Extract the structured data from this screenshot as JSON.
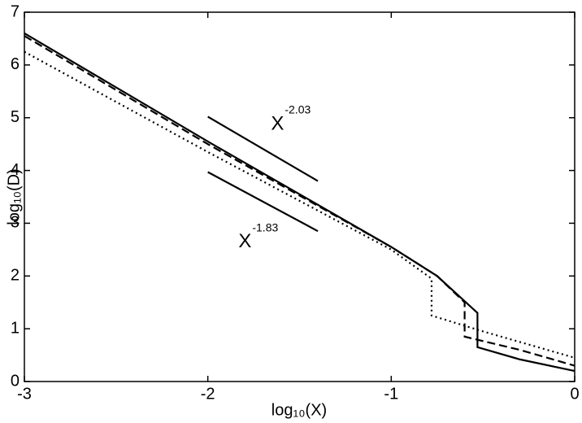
{
  "chart_data": {
    "type": "line",
    "xlabel": "log₁₀(X)",
    "ylabel": "log₁₀(D)",
    "xlim": [
      -3,
      0
    ],
    "ylim": [
      0,
      7
    ],
    "xticks": [
      -3,
      -2,
      -1,
      0
    ],
    "yticks": [
      0,
      1,
      2,
      3,
      4,
      5,
      6,
      7
    ],
    "series": [
      {
        "style": "solid",
        "color": "#000000",
        "x": [
          -3,
          -2,
          -1,
          -0.75,
          -0.53,
          -0.53,
          -0.3,
          0
        ],
        "values": [
          6.6,
          4.55,
          2.55,
          2.0,
          1.3,
          0.65,
          0.42,
          0.2
        ]
      },
      {
        "style": "dashed",
        "color": "#000000",
        "x": [
          -3,
          -2,
          -1,
          -0.75,
          -0.6,
          -0.6,
          -0.3,
          0
        ],
        "values": [
          6.55,
          4.5,
          2.55,
          2.0,
          1.5,
          0.85,
          0.6,
          0.3
        ]
      },
      {
        "style": "dotted",
        "color": "#000000",
        "x": [
          -3,
          -2,
          -1,
          -0.78,
          -0.78,
          -0.5,
          0
        ],
        "values": [
          6.25,
          4.35,
          2.5,
          1.95,
          1.25,
          0.95,
          0.45
        ]
      }
    ],
    "reference_lines": [
      {
        "x": [
          -2,
          -1.4
        ],
        "values": [
          5.02,
          3.8
        ],
        "label": "X",
        "exponent": "-2.03"
      },
      {
        "x": [
          -2,
          -1.4
        ],
        "values": [
          3.97,
          2.85
        ],
        "label": "X",
        "exponent": "-1.83"
      }
    ]
  }
}
